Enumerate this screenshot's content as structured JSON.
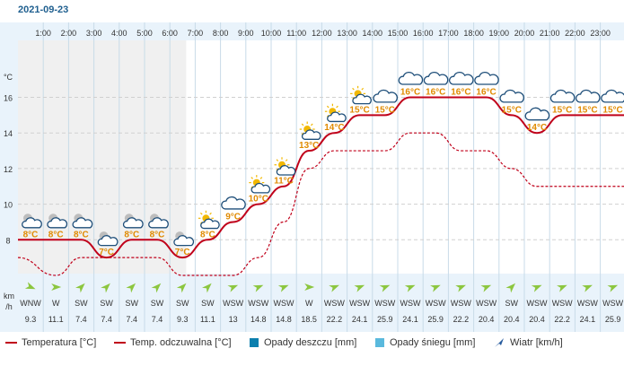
{
  "date": "2021-09-23",
  "chart_data": {
    "type": "line",
    "hours": [
      "1:00",
      "2:00",
      "3:00",
      "4:00",
      "5:00",
      "6:00",
      "7:00",
      "8:00",
      "9:00",
      "10:00",
      "11:00",
      "12:00",
      "13:00",
      "14:00",
      "15:00",
      "16:00",
      "17:00",
      "18:00",
      "19:00",
      "20:00",
      "21:00",
      "22:00",
      "23:00"
    ],
    "y_unit": "°C",
    "y_ticks": [
      8,
      10,
      12,
      14,
      16
    ],
    "ylim": [
      6.1,
      19.2
    ],
    "temperature": [
      8,
      8,
      8,
      7,
      8,
      8,
      7,
      8,
      9,
      10,
      11,
      13,
      14,
      15,
      15,
      16,
      16,
      16,
      16,
      15,
      14,
      15,
      15,
      15
    ],
    "apparent_temperature": [
      7,
      6,
      7,
      7,
      7,
      7,
      6,
      6,
      6,
      7,
      9,
      12,
      13,
      13,
      13,
      14,
      14,
      13,
      13,
      12,
      11,
      11,
      11,
      11
    ],
    "temperature_labels": [
      "8°C",
      "8°C",
      "8°C",
      "7°C",
      "8°C",
      "8°C",
      "7°C",
      "8°C",
      "9°C",
      "10°C",
      "11°C",
      "13°C",
      "14°C",
      "15°C",
      "15°C",
      "16°C",
      "16°C",
      "16°C",
      "16°C",
      "15°C",
      "14°C",
      "15°C",
      "15°C",
      "15°C"
    ],
    "weather_icons": [
      "partly-cloudy-night",
      "partly-cloudy-night",
      "partly-cloudy-night",
      "cloudy-night",
      "partly-cloudy-night",
      "partly-cloudy-night",
      "cloudy-night",
      "partly-cloudy-day",
      "cloudy",
      "partly-cloudy-day",
      "partly-cloudy-day",
      "partly-cloudy-day",
      "partly-cloudy-day",
      "partly-cloudy-day",
      "cloudy",
      "cloudy",
      "cloudy",
      "cloudy",
      "cloudy",
      "cloudy",
      "cloudy",
      "cloudy",
      "cloudy",
      "cloudy"
    ],
    "wind_unit_top": "km",
    "wind_unit_bottom": "/h",
    "wind_direction": [
      "WNW",
      "W",
      "SW",
      "SW",
      "SW",
      "SW",
      "SW",
      "SW",
      "WSW",
      "WSW",
      "WSW",
      "W",
      "WSW",
      "WSW",
      "WSW",
      "WSW",
      "WSW",
      "WSW",
      "WSW",
      "SW",
      "WSW",
      "WSW",
      "WSW",
      "WSW"
    ],
    "wind_speed": [
      "9.3",
      "11.1",
      "7.4",
      "7.4",
      "7.4",
      "7.4",
      "9.3",
      "11.1",
      "13",
      "14.8",
      "14.8",
      "18.5",
      "22.2",
      "24.1",
      "25.9",
      "24.1",
      "25.9",
      "22.2",
      "20.4",
      "20.4",
      "20.4",
      "22.2",
      "24.1",
      "25.9"
    ],
    "wind_dir_deg": [
      292.5,
      270,
      225,
      225,
      225,
      225,
      225,
      225,
      247.5,
      247.5,
      247.5,
      270,
      247.5,
      247.5,
      247.5,
      247.5,
      247.5,
      247.5,
      247.5,
      225,
      247.5,
      247.5,
      247.5,
      247.5
    ],
    "night_columns_before_day": 7,
    "colors": {
      "temperature": "#c0001a",
      "apparent": "#c0001a",
      "label": "#e08a00",
      "night_bg": "#f0f0f0",
      "axis_bg": "#e9f3fb",
      "wind_arrow": "#8cc63f",
      "text": "#333333"
    }
  },
  "legend": [
    {
      "label": "Temperatura [°C]",
      "kind": "line",
      "color": "#c0001a"
    },
    {
      "label": "Temp. odczuwalna [°C]",
      "kind": "line",
      "color": "#c0001a"
    },
    {
      "label": "Opady deszczu [mm]",
      "kind": "box",
      "color": "#0b7fae"
    },
    {
      "label": "Opady śniegu [mm]",
      "kind": "box",
      "color": "#5ab9dd"
    },
    {
      "label": "Wiatr [km/h]",
      "kind": "wind",
      "color": "#2a5d9f"
    }
  ]
}
